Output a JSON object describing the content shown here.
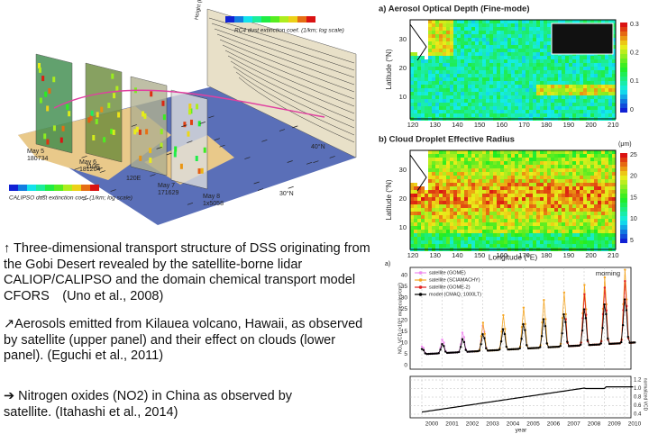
{
  "figure_3d": {
    "top_colorbar": "RC4 dust extinction coef. (1/km; log scale)",
    "bottom_colorbar": "CALIPSO dust extinction coef. (1/km; log scale)",
    "height_label": "Height (km)",
    "lat40": "40°N",
    "lat30": "30°N",
    "lon_a": "110E",
    "lon_b": "120E",
    "passes": [
      {
        "date": "May 5",
        "id": "180734"
      },
      {
        "date": "May 6",
        "id": "181204"
      },
      {
        "date": "May 7",
        "id": "171629"
      },
      {
        "date": "May 8",
        "id": "1x5058"
      }
    ]
  },
  "captions": [
    "↑ Three-dimensional transport structure of DSS originating from the Gobi Desert revealed by the satellite-borne lidar CALIOP/CALIPSO and the domain chemical transport model CFORS　(Uno et al., 2008)",
    "↗Aerosols emitted from Kilauea volcano, Hawaii, as observed by satellite (upper panel) and their effect on clouds (lower panel). (Eguchi et al., 2011)",
    "➔ Nitrogen oxides (NO2) in China as observed by satellite. (Itahashi et al., 2014)"
  ],
  "aod": {
    "title": "a) Aerosol Optical Depth (Fine-mode)",
    "ylabel": "Latitude (°N)",
    "yticks": [
      "30",
      "20",
      "10"
    ],
    "xticks": [
      "120",
      "130",
      "140",
      "150",
      "160",
      "170",
      "180",
      "190",
      "200",
      "210"
    ],
    "colorbar_ticks": [
      "0.3",
      "0.2",
      "0.1",
      "0"
    ]
  },
  "cer": {
    "title": "b) Cloud Droplet Effective Radius",
    "ylabel": "Latitude (°N)",
    "xlabel": "Longitude (°E)",
    "yticks": [
      "30",
      "20",
      "10"
    ],
    "xticks": [
      "120",
      "130",
      "140",
      "150",
      "160",
      "170",
      "180",
      "190",
      "200",
      "210"
    ],
    "colorbar_unit": "(μm)",
    "colorbar_ticks": [
      "25",
      "20",
      "15",
      "10",
      "5"
    ]
  },
  "no2": {
    "panel": "a)",
    "annotation": "morning",
    "legend": [
      {
        "name": "satellite (GOME)",
        "color": "#f08cf0"
      },
      {
        "name": "satellite (SCIAMACHY)",
        "color": "#f5a623"
      },
      {
        "name": "satellite (GOME-2)",
        "color": "#e02020"
      },
      {
        "name": "model (CMAQ, 1000LT)",
        "color": "#000000"
      }
    ],
    "ylabel": "NO₂ VCD (×10¹⁵ molecules/cm²)",
    "yticks": [
      "0",
      "5",
      "10",
      "15",
      "20",
      "25",
      "30",
      "35",
      "40"
    ],
    "xticks": [
      "2000",
      "2001",
      "2002",
      "2003",
      "2004",
      "2005",
      "2006",
      "2007",
      "2008",
      "2009",
      "2010"
    ],
    "xlabel": "year",
    "lower_yticks": [
      "0.4",
      "0.6",
      "0.8",
      "1.0",
      "1.2"
    ],
    "lower_ylabel": "normalized VCD"
  }
}
